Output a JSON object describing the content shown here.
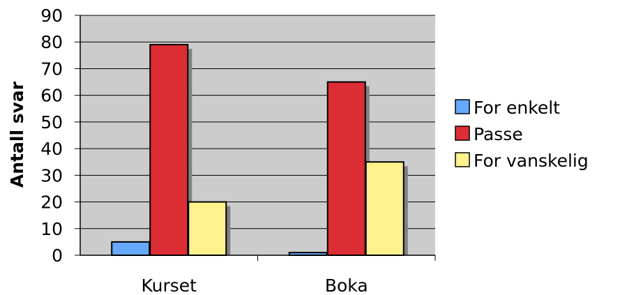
{
  "chart_data": {
    "type": "bar",
    "categories": [
      "Kurset",
      "Boka"
    ],
    "series": [
      {
        "name": "For enkelt",
        "values": [
          5,
          1
        ],
        "color": "#66aaff"
      },
      {
        "name": "Passe",
        "values": [
          79,
          65
        ],
        "color": "#dd2e35"
      },
      {
        "name": "For vanskelig",
        "values": [
          20,
          35
        ],
        "color": "#fff28e"
      }
    ],
    "ylabel": "Antall svar",
    "xlabel": "",
    "title": "",
    "ylim": [
      0,
      90
    ],
    "yticks": [
      0,
      10,
      20,
      30,
      40,
      50,
      60,
      70,
      80,
      90
    ],
    "grid": true,
    "legend_position": "right",
    "plot_background": "#cccccc"
  }
}
